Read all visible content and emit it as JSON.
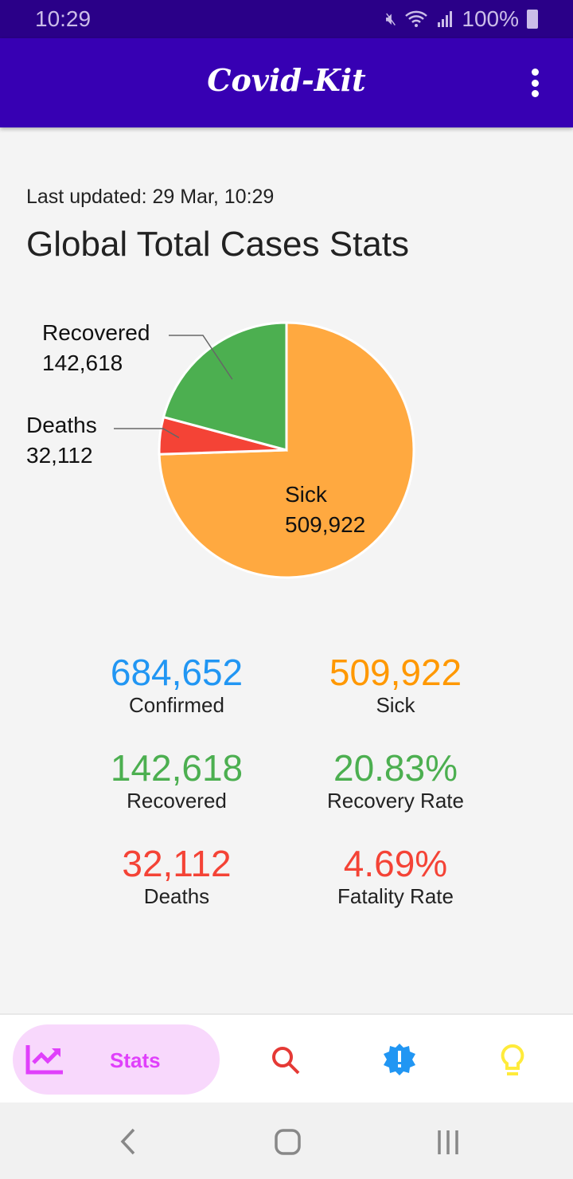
{
  "status_bar": {
    "time": "10:29",
    "battery": "100%"
  },
  "app_bar": {
    "title": "Covid-Kit"
  },
  "main": {
    "last_updated": "Last updated: 29 Mar, 10:29",
    "heading": "Global Total Cases Stats"
  },
  "chart_data": {
    "type": "pie",
    "slices": [
      {
        "name": "Sick",
        "value": 509922,
        "label": "509,922",
        "color": "#ffa940"
      },
      {
        "name": "Deaths",
        "value": 32112,
        "label": "32,112",
        "color": "#f44336"
      },
      {
        "name": "Recovered",
        "value": 142618,
        "label": "142,618",
        "color": "#4caf50"
      }
    ]
  },
  "stats": [
    {
      "value": "684,652",
      "label": "Confirmed",
      "color": "#2196f3"
    },
    {
      "value": "509,922",
      "label": "Sick",
      "color": "#ff9800"
    },
    {
      "value": "142,618",
      "label": "Recovered",
      "color": "#4caf50"
    },
    {
      "value": "20.83%",
      "label": "Recovery Rate",
      "color": "#4caf50"
    },
    {
      "value": "32,112",
      "label": "Deaths",
      "color": "#f44336"
    },
    {
      "value": "4.69%",
      "label": "Fatality Rate",
      "color": "#f44336"
    }
  ],
  "bottom_nav": {
    "items": [
      {
        "label": "Stats",
        "icon": "trending-up-icon",
        "active": true
      },
      {
        "icon": "search-icon"
      },
      {
        "icon": "alert-badge-icon"
      },
      {
        "icon": "lightbulb-icon"
      }
    ]
  }
}
